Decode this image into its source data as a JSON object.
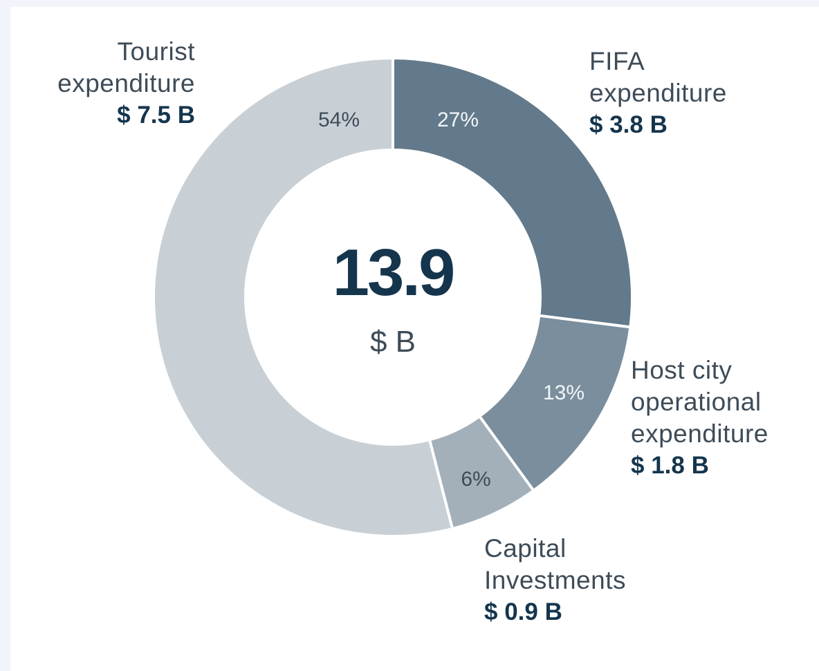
{
  "chart_data": {
    "type": "donut",
    "categories": [
      "FIFA\nexpenditure",
      "Host city\noperational\nexpenditure",
      "Capital\nInvestments",
      "Tourist\nexpenditure"
    ],
    "values": [
      27,
      13,
      6,
      54
    ],
    "value_labels": [
      "27%",
      "13%",
      "6%",
      "54%"
    ],
    "amount_labels": [
      "$ 3.8 B",
      "$ 1.8 B",
      "$ 0.9 B",
      "$ 7.5 B"
    ],
    "colors": [
      "#627a8b",
      "#7a8e9d",
      "#a3b0ba",
      "#c8d0d6"
    ],
    "center_value": "13.9",
    "center_unit": "$ B"
  }
}
